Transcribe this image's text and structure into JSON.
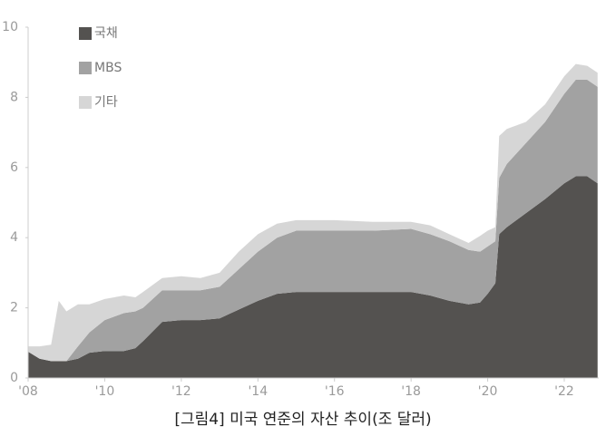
{
  "chart_data": {
    "type": "stacked_area",
    "title": "[그림4] 미국 연준의 자산 추이(조 달러)",
    "x": [
      2008.0,
      2008.3,
      2008.6,
      2008.8,
      2009.0,
      2009.3,
      2009.6,
      2010.0,
      2010.5,
      2010.8,
      2011.0,
      2011.5,
      2012.0,
      2012.5,
      2013.0,
      2013.5,
      2014.0,
      2014.5,
      2015.0,
      2016.0,
      2017.0,
      2018.0,
      2018.5,
      2019.0,
      2019.5,
      2019.8,
      2020.0,
      2020.2,
      2020.3,
      2020.5,
      2021.0,
      2021.5,
      2022.0,
      2022.3,
      2022.6,
      2022.87
    ],
    "series": [
      {
        "name": "국채",
        "color": "#545250",
        "values": [
          0.75,
          0.55,
          0.48,
          0.48,
          0.48,
          0.55,
          0.72,
          0.77,
          0.77,
          0.85,
          1.05,
          1.6,
          1.65,
          1.65,
          1.7,
          1.95,
          2.2,
          2.4,
          2.45,
          2.45,
          2.45,
          2.45,
          2.35,
          2.2,
          2.1,
          2.15,
          2.4,
          2.7,
          4.1,
          4.3,
          4.7,
          5.1,
          5.55,
          5.75,
          5.75,
          5.55
        ]
      },
      {
        "name": "MBS",
        "color": "#a2a2a2",
        "values": [
          0,
          0,
          0,
          0,
          0,
          0.35,
          0.58,
          0.88,
          1.08,
          1.05,
          0.95,
          0.9,
          0.85,
          0.85,
          0.9,
          1.15,
          1.4,
          1.6,
          1.75,
          1.75,
          1.75,
          1.8,
          1.75,
          1.7,
          1.55,
          1.45,
          1.35,
          1.2,
          1.6,
          1.8,
          2.0,
          2.2,
          2.55,
          2.75,
          2.75,
          2.75
        ]
      },
      {
        "name": "기타",
        "color": "#d6d6d6",
        "values": [
          0.15,
          0.35,
          0.47,
          1.72,
          1.42,
          1.2,
          0.8,
          0.6,
          0.5,
          0.4,
          0.45,
          0.35,
          0.4,
          0.35,
          0.4,
          0.5,
          0.5,
          0.4,
          0.3,
          0.3,
          0.25,
          0.2,
          0.25,
          0.2,
          0.2,
          0.45,
          0.45,
          0.4,
          1.2,
          1.0,
          0.6,
          0.5,
          0.5,
          0.45,
          0.4,
          0.4
        ]
      }
    ],
    "xlim": [
      2008,
      2022.9
    ],
    "xticks": [
      {
        "value": 2008,
        "label": "'08"
      },
      {
        "value": 2010,
        "label": "'10"
      },
      {
        "value": 2012,
        "label": "'12"
      },
      {
        "value": 2014,
        "label": "'14"
      },
      {
        "value": 2016,
        "label": "'16"
      },
      {
        "value": 2018,
        "label": "'18"
      },
      {
        "value": 2020,
        "label": "'20"
      },
      {
        "value": 2022,
        "label": "'22"
      }
    ],
    "ylim": [
      0,
      10
    ],
    "yticks": [
      0,
      2,
      4,
      6,
      8,
      10
    ],
    "legend": "top-left"
  }
}
